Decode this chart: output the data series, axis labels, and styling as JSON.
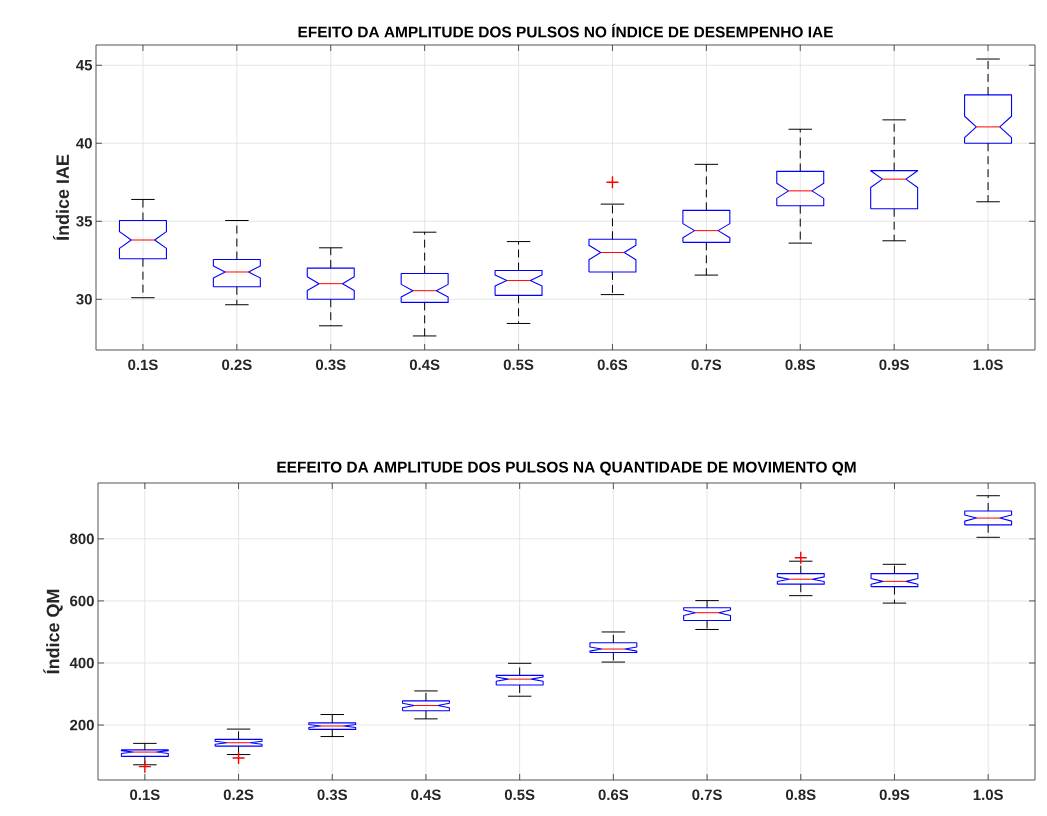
{
  "chart_data": [
    {
      "type": "box",
      "title": "EFEITO DA AMPLITUDE DOS PULSOS NO ÍNDICE DE DESEMPENHO IAE",
      "ylabel": "Índice IAE",
      "categories": [
        "0.1S",
        "0.2S",
        "0.3S",
        "0.4S",
        "0.5S",
        "0.6S",
        "0.7S",
        "0.8S",
        "0.9S",
        "1.0S"
      ],
      "ylim": [
        26.75,
        46.3
      ],
      "yticks": [
        30,
        35,
        40,
        45
      ],
      "grid": true,
      "series": [
        {
          "color": "#0000ff",
          "boxes": [
            {
              "low": 30.1,
              "q1": 32.6,
              "median": 33.8,
              "q3": 35.05,
              "high": 36.4
            },
            {
              "low": 29.65,
              "q1": 30.8,
              "median": 31.75,
              "q3": 32.55,
              "high": 35.05
            },
            {
              "low": 28.3,
              "q1": 30.0,
              "median": 31.0,
              "q3": 32.0,
              "high": 33.3
            },
            {
              "low": 27.65,
              "q1": 29.8,
              "median": 30.55,
              "q3": 31.65,
              "high": 34.3
            },
            {
              "low": 28.45,
              "q1": 30.25,
              "median": 31.2,
              "q3": 31.85,
              "high": 33.7
            },
            {
              "low": 30.3,
              "q1": 31.75,
              "median": 33.0,
              "q3": 33.85,
              "high": 36.1,
              "outliers": [
                37.5
              ]
            },
            {
              "low": 31.55,
              "q1": 33.65,
              "median": 34.4,
              "q3": 35.7,
              "high": 38.65
            },
            {
              "low": 33.6,
              "q1": 36.0,
              "median": 36.95,
              "q3": 38.2,
              "high": 40.9
            },
            {
              "low": 33.75,
              "q1": 35.8,
              "median": 37.7,
              "q3": 38.25,
              "high": 41.5
            },
            {
              "low": 36.25,
              "q1": 40.0,
              "median": 41.05,
              "q3": 43.1,
              "high": 45.4
            }
          ]
        }
      ]
    },
    {
      "type": "box",
      "title": "EEFEITO DA AMPLITUDE DOS PULSOS NA QUANTIDADE DE MOVIMENTO QM",
      "ylabel": "Índice QM",
      "categories": [
        "0.1S",
        "0.2S",
        "0.3S",
        "0.4S",
        "0.5S",
        "0.6S",
        "0.7S",
        "0.8S",
        "0.9S",
        "1.0S"
      ],
      "ylim": [
        23,
        980
      ],
      "yticks": [
        200,
        400,
        600,
        800
      ],
      "grid": true,
      "series": [
        {
          "color": "#0000ff",
          "boxes": [
            {
              "low": 72,
              "q1": 99,
              "median": 113,
              "q3": 120,
              "high": 141,
              "outliers": [
                66
              ]
            },
            {
              "low": 105,
              "q1": 132,
              "median": 143,
              "q3": 154,
              "high": 187,
              "outliers": [
                94
              ]
            },
            {
              "low": 163,
              "q1": 186,
              "median": 197,
              "q3": 207,
              "high": 234
            },
            {
              "low": 220,
              "q1": 246,
              "median": 263,
              "q3": 278,
              "high": 310
            },
            {
              "low": 293,
              "q1": 329,
              "median": 348,
              "q3": 360,
              "high": 399
            },
            {
              "low": 403,
              "q1": 434,
              "median": 445,
              "q3": 465,
              "high": 500
            },
            {
              "low": 508,
              "q1": 537,
              "median": 562,
              "q3": 578,
              "high": 601
            },
            {
              "low": 617,
              "q1": 654,
              "median": 670,
              "q3": 688,
              "high": 728,
              "outliers": [
                739
              ]
            },
            {
              "low": 593,
              "q1": 646,
              "median": 663,
              "q3": 688,
              "high": 718
            },
            {
              "low": 805,
              "q1": 845,
              "median": 867,
              "q3": 890,
              "high": 939
            }
          ]
        }
      ]
    }
  ]
}
